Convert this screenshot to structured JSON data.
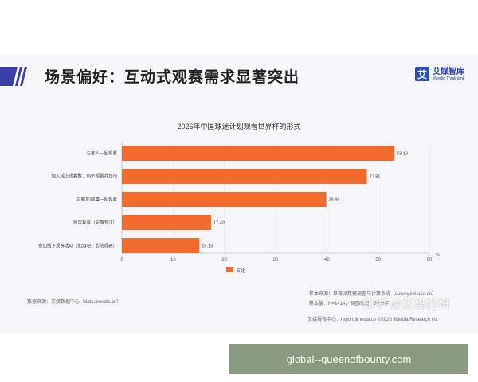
{
  "slide": {
    "title": "场景偏好：互动式观赛需求显著突出"
  },
  "brand": {
    "logo_glyph": "艾",
    "name": "艾媒智库",
    "sub": "iiMedia Think tank",
    "color": "#2b4fb5"
  },
  "chart_data": {
    "type": "bar",
    "orientation": "horizontal",
    "title": "2026年中国球迷计划观看世界杯的形式",
    "categories": [
      "与家人一起观看",
      "加入线上观赛群、同步观看并互动",
      "与朋友/同事一起观看",
      "独自观看（安静专注）",
      "参加线下观赛活动（如酒吧、影院观赛）"
    ],
    "values": [
      53.18,
      47.81,
      39.89,
      17.4,
      15.13
    ],
    "value_labels": [
      "53.18",
      "47.81",
      "39.89",
      "17.40",
      "15.13"
    ],
    "xlim": [
      0,
      60
    ],
    "xticks": [
      "0",
      "10",
      "20",
      "30",
      "40",
      "50",
      "60"
    ],
    "unit": "%",
    "legend": {
      "label": "占比",
      "position": "bottom-center"
    },
    "bar_color": "#f26b2e",
    "grid": true
  },
  "sources": {
    "left": "数据来源：艾媒数据中心（data.iimedia.cn）",
    "right_line1": "样本来源：草莓派数据调查与计算系统（survey.iimedia.cn）",
    "right_line2": "样本量：N=1414；调查时间：2026年",
    "footer": "艾媒报告中心：report.iimedia.cn  ©2026 iiMedia Research Inc"
  },
  "watermark": "知乎 @艾媒行研",
  "url_banner": "global--queenofbounty.com"
}
